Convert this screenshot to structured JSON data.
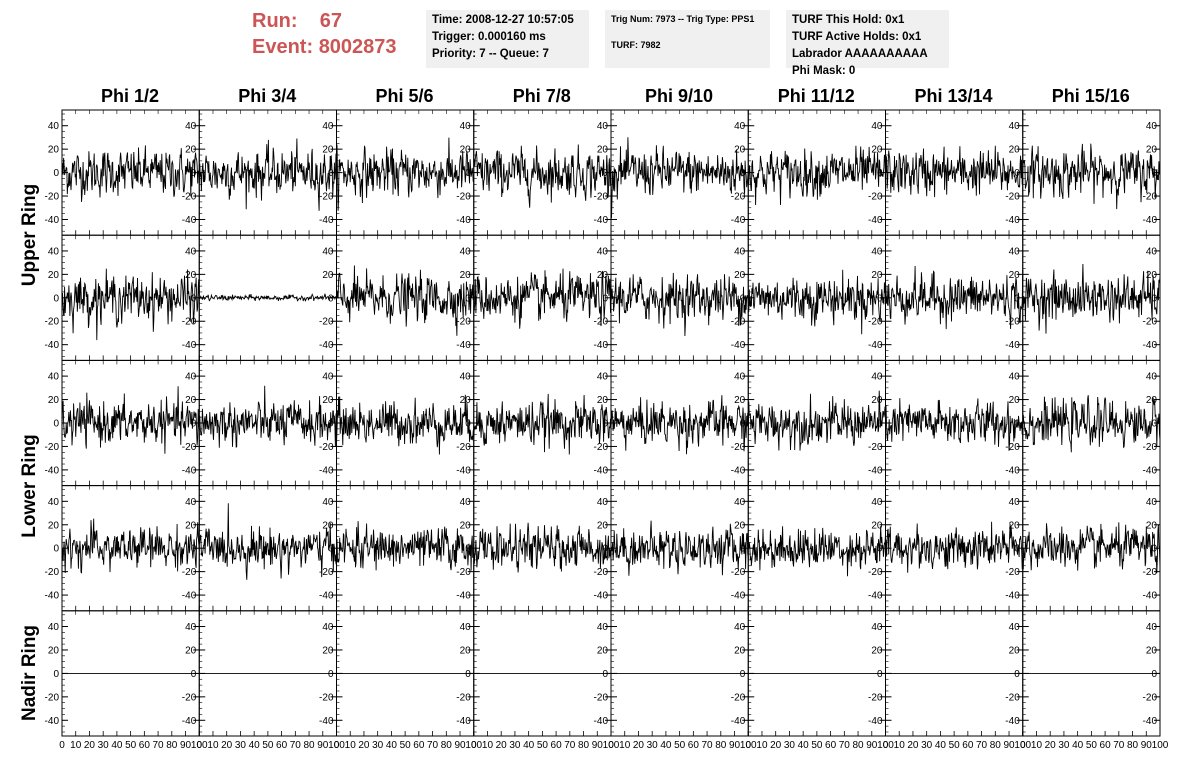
{
  "header": {
    "run_label": "Run:",
    "run_value": "67",
    "event_label": "Event:",
    "event_value": "8002873",
    "time": "Time: 2008-12-27 10:57:05",
    "trigger": "Trigger: 0.000160 ms",
    "priority": "Priority: 7 -- Queue: 7",
    "trig_num": "Trig Num: 7973 -- Trig Type: PPS1",
    "turf": "TURF: 7982",
    "turf_hold": "TURF This Hold: 0x1",
    "turf_active": "TURF Active Holds: 0x1",
    "labrador": "Labrador AAAAAAAAAA",
    "phi_mask": "Phi Mask: 0"
  },
  "columns": [
    "Phi 1/2",
    "Phi 3/4",
    "Phi 5/6",
    "Phi 7/8",
    "Phi 9/10",
    "Phi 11/12",
    "Phi 13/14",
    "Phi 15/16"
  ],
  "rows": [
    "Upper Ring",
    "Upper Ring",
    "Lower Ring",
    "Lower Ring",
    "Nadir Ring"
  ],
  "row_labels": [
    {
      "text": "Upper Ring",
      "row": 0.5
    },
    {
      "text": "Lower Ring",
      "row": 2.5
    },
    {
      "text": "Nadir Ring",
      "row": 4
    }
  ],
  "chart_data": {
    "type": "line",
    "layout": "grid 5 rows x 8 columns of waveform panels",
    "x_ticks": [
      0,
      10,
      20,
      30,
      40,
      50,
      60,
      70,
      80,
      90,
      100
    ],
    "x_tick_labels": [
      "0",
      "10",
      "20",
      "30",
      "40",
      "50",
      "60",
      "70",
      "80",
      "90",
      "100"
    ],
    "y_ticks": [
      -40,
      -20,
      0,
      20,
      40
    ],
    "y_tick_labels": [
      "-40",
      "-20",
      "0",
      "20",
      "40"
    ],
    "xlim": [
      0,
      100
    ],
    "ylim": [
      -50,
      50
    ],
    "panels": [
      {
        "row": 0,
        "noise_amplitude": 17,
        "flat": false
      },
      {
        "row": 1,
        "noise_amplitude": 17,
        "flat": false
      },
      {
        "row": 2,
        "noise_amplitude": 16,
        "flat": false
      },
      {
        "row": 3,
        "noise_amplitude": 15,
        "flat": false
      },
      {
        "row": 4,
        "noise_amplitude": 0,
        "flat": true
      }
    ],
    "special_panels": [
      {
        "row": 1,
        "col": 1,
        "noise_amplitude": 2
      }
    ],
    "line_color": "#000000",
    "grid": false
  }
}
